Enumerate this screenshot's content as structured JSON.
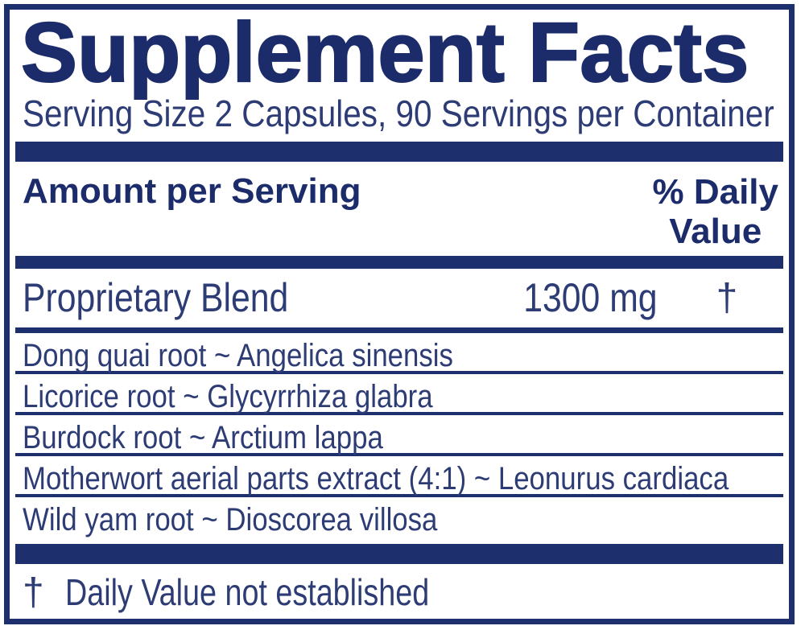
{
  "colors": {
    "navy_rule": "#1e2f6e",
    "heading_text": "#1c2c6b",
    "body_text": "#2d3c74",
    "background": "#ffffff"
  },
  "title": "Supplement Facts",
  "serving_info": "Serving Size 2 Capsules, 90 Servings per Container",
  "table_header": {
    "amount_per_serving": "Amount per Serving",
    "daily_value_line1": "% Daily",
    "daily_value_line2": "Value"
  },
  "proprietary_blend": {
    "name": "Proprietary Blend",
    "amount": "1300 mg",
    "daily_value_symbol": "†"
  },
  "ingredients": [
    "Dong quai root ~ Angelica sinensis",
    "Licorice root ~ Glycyrrhiza glabra",
    "Burdock root ~ Arctium lappa",
    "Motherwort aerial parts extract (4:1) ~ Leonurus cardiaca",
    "Wild yam root ~ Dioscorea villosa"
  ],
  "footnote": {
    "symbol": "†",
    "text": "Daily Value not established"
  }
}
